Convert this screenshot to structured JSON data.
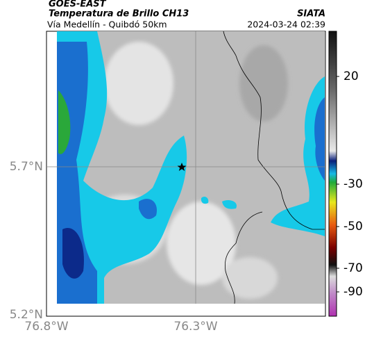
{
  "header": {
    "title": "GOES-EAST",
    "subtitle": "Temperatura de Brillo CH13",
    "source": "SIATA",
    "location": "Vía Medellín - Quibdó 50km",
    "datetime": "2024-03-24 02:39"
  },
  "map": {
    "lat_labels": [
      "5.7°N",
      "5.2°N"
    ],
    "lon_labels": [
      "76.8°W",
      "76.3°W"
    ]
  },
  "colorbar": {
    "ticks": [
      20,
      -30,
      -50,
      -70,
      -90
    ]
  }
}
